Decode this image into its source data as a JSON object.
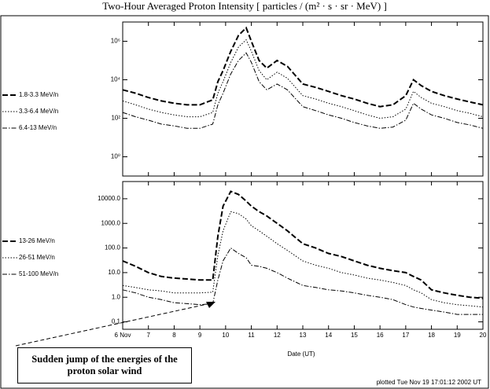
{
  "chart_data": [
    {
      "type": "line",
      "title": "Two-Hour Averaged Proton Intensity [ particles / (m² · s · sr · MeV) ]",
      "log_y": true,
      "grid": false,
      "legend": "left",
      "x": [
        6,
        6.5,
        7,
        7.5,
        8,
        8.5,
        9,
        9.5,
        9.7,
        9.9,
        10.2,
        10.5,
        10.8,
        11,
        11.3,
        11.6,
        12,
        12.4,
        13,
        13.5,
        14,
        14.5,
        15,
        15.5,
        16,
        16.5,
        17,
        17.3,
        17.6,
        18,
        18.5,
        19,
        19.5,
        20
      ],
      "xlim": [
        6,
        20
      ],
      "ylim": [
        0.1,
        10000000
      ],
      "yticks": [
        {
          "value": 1,
          "label": "10⁰"
        },
        {
          "value": 100,
          "label": "10²"
        },
        {
          "value": 10000,
          "label": "10⁴"
        },
        {
          "value": 1000000,
          "label": "10⁶"
        }
      ],
      "series": [
        {
          "name": "1.8-3.3 MeV/n",
          "color": "#000000",
          "dash": "dashed",
          "values": [
            3000,
            2000,
            1200,
            800,
            600,
            500,
            500,
            900,
            8000,
            30000,
            300000,
            2000000,
            5000000,
            1000000,
            100000,
            40000,
            100000,
            50000,
            6000,
            4000,
            2500,
            1500,
            1000,
            600,
            400,
            500,
            1500,
            10000,
            5000,
            2500,
            1500,
            1000,
            700,
            500
          ]
        },
        {
          "name": "3.3-6.4 MeV/n",
          "color": "#000000",
          "dash": "dotted",
          "values": [
            800,
            500,
            300,
            200,
            150,
            120,
            120,
            200,
            2000,
            8000,
            80000,
            500000,
            1200000,
            300000,
            30000,
            10000,
            25000,
            12000,
            1500,
            1000,
            600,
            400,
            250,
            150,
            100,
            120,
            300,
            2500,
            1200,
            600,
            400,
            250,
            180,
            120
          ]
        },
        {
          "name": "6.4-13 MeV/n",
          "color": "#000000",
          "dash": "dashdot",
          "values": [
            200,
            120,
            80,
            50,
            40,
            30,
            30,
            50,
            500,
            2000,
            20000,
            100000,
            250000,
            80000,
            8000,
            3000,
            6000,
            3000,
            400,
            250,
            150,
            100,
            60,
            40,
            30,
            35,
            80,
            600,
            300,
            150,
            100,
            60,
            45,
            30
          ]
        }
      ]
    },
    {
      "type": "line",
      "log_y": true,
      "grid": false,
      "legend": "left",
      "xlabel": "Date (UT)",
      "x": [
        6,
        6.5,
        7,
        7.5,
        8,
        8.5,
        9,
        9.5,
        9.7,
        9.9,
        10.2,
        10.5,
        10.8,
        11,
        11.3,
        11.6,
        12,
        12.4,
        13,
        13.5,
        14,
        14.5,
        15,
        15.5,
        16,
        16.5,
        17,
        17.3,
        17.6,
        18,
        18.5,
        19,
        19.5,
        20
      ],
      "xlim": [
        6,
        20
      ],
      "xticks": [
        {
          "value": 6,
          "label": "6 Nov"
        },
        7,
        8,
        9,
        10,
        11,
        12,
        13,
        14,
        15,
        16,
        17,
        18,
        19,
        20
      ],
      "ylim": [
        0.05,
        50000
      ],
      "yticks": [
        0.1,
        {
          "value": 1,
          "label": "1.0"
        },
        {
          "value": 10,
          "label": "10.0"
        },
        {
          "value": 100,
          "label": "100.0"
        },
        {
          "value": 1000,
          "label": "1000.0"
        },
        {
          "value": 10000,
          "label": "10000.0"
        }
      ],
      "annotation": "Sudden jump of the energies of the proton solar wind",
      "footer": "plotted Tue Nov 19 17:01:12 2002 UT",
      "series": [
        {
          "name": "13-26 MeV/n",
          "color": "#000000",
          "dash": "dashed",
          "values": [
            30,
            18,
            10,
            7,
            6,
            5.5,
            5,
            5,
            300,
            5000,
            20000,
            15000,
            8000,
            5000,
            3000,
            2000,
            1000,
            500,
            150,
            100,
            60,
            45,
            30,
            20,
            15,
            12,
            10,
            7,
            5,
            2,
            1.5,
            1.2,
            1,
            0.9
          ]
        },
        {
          "name": "26-51 MeV/n",
          "color": "#000000",
          "dash": "dotted",
          "values": [
            3,
            2.5,
            2,
            1.8,
            1.5,
            1.5,
            1.5,
            1.6,
            50,
            500,
            3000,
            2500,
            1500,
            800,
            500,
            300,
            150,
            80,
            30,
            20,
            15,
            10,
            8,
            6,
            5,
            4,
            3,
            2,
            1.5,
            0.8,
            0.6,
            0.5,
            0.45,
            0.4
          ]
        },
        {
          "name": "51-100 MeV/n",
          "color": "#000000",
          "dash": "dashdot",
          "values": [
            2,
            1.5,
            1,
            0.8,
            0.6,
            0.55,
            0.5,
            0.55,
            5,
            30,
            100,
            60,
            40,
            20,
            18,
            15,
            10,
            6,
            3,
            2.5,
            2,
            1.8,
            1.5,
            1.2,
            1,
            0.8,
            0.5,
            0.4,
            0.35,
            0.3,
            0.25,
            0.2,
            0.2,
            0.2
          ]
        }
      ]
    }
  ]
}
